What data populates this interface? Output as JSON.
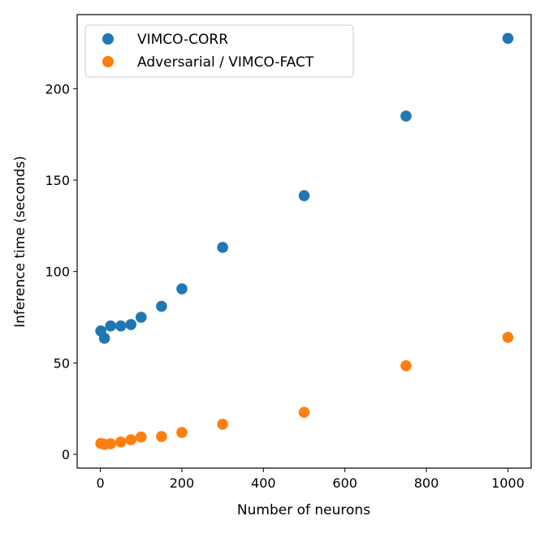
{
  "chart_data": {
    "type": "scatter",
    "title": "",
    "xlabel": "Number of neurons",
    "ylabel": "Inference time (seconds)",
    "xlim": [
      -57,
      1057
    ],
    "ylim": [
      -7.5,
      240.5
    ],
    "xticks": [
      0,
      200,
      400,
      600,
      800,
      1000
    ],
    "yticks": [
      0,
      50,
      100,
      150,
      200
    ],
    "grid": false,
    "legend_position": "top-left",
    "series": [
      {
        "name": "VIMCO-CORR",
        "color": "#1f77b4",
        "x": [
          1,
          10,
          25,
          50,
          75,
          100,
          150,
          200,
          300,
          500,
          750,
          1000
        ],
        "y": [
          67.5,
          63.5,
          70.2,
          70.2,
          71.0,
          75.0,
          81.0,
          90.5,
          113.2,
          141.5,
          185.0,
          227.5
        ]
      },
      {
        "name": "Adversarial / VIMCO-FACT",
        "color": "#ff7f0e",
        "x": [
          1,
          10,
          25,
          50,
          75,
          100,
          150,
          200,
          300,
          500,
          750,
          1000
        ],
        "y": [
          6.0,
          5.5,
          5.8,
          6.8,
          8.0,
          9.5,
          9.8,
          12.0,
          16.5,
          23.0,
          48.5,
          64.0
        ]
      }
    ]
  }
}
